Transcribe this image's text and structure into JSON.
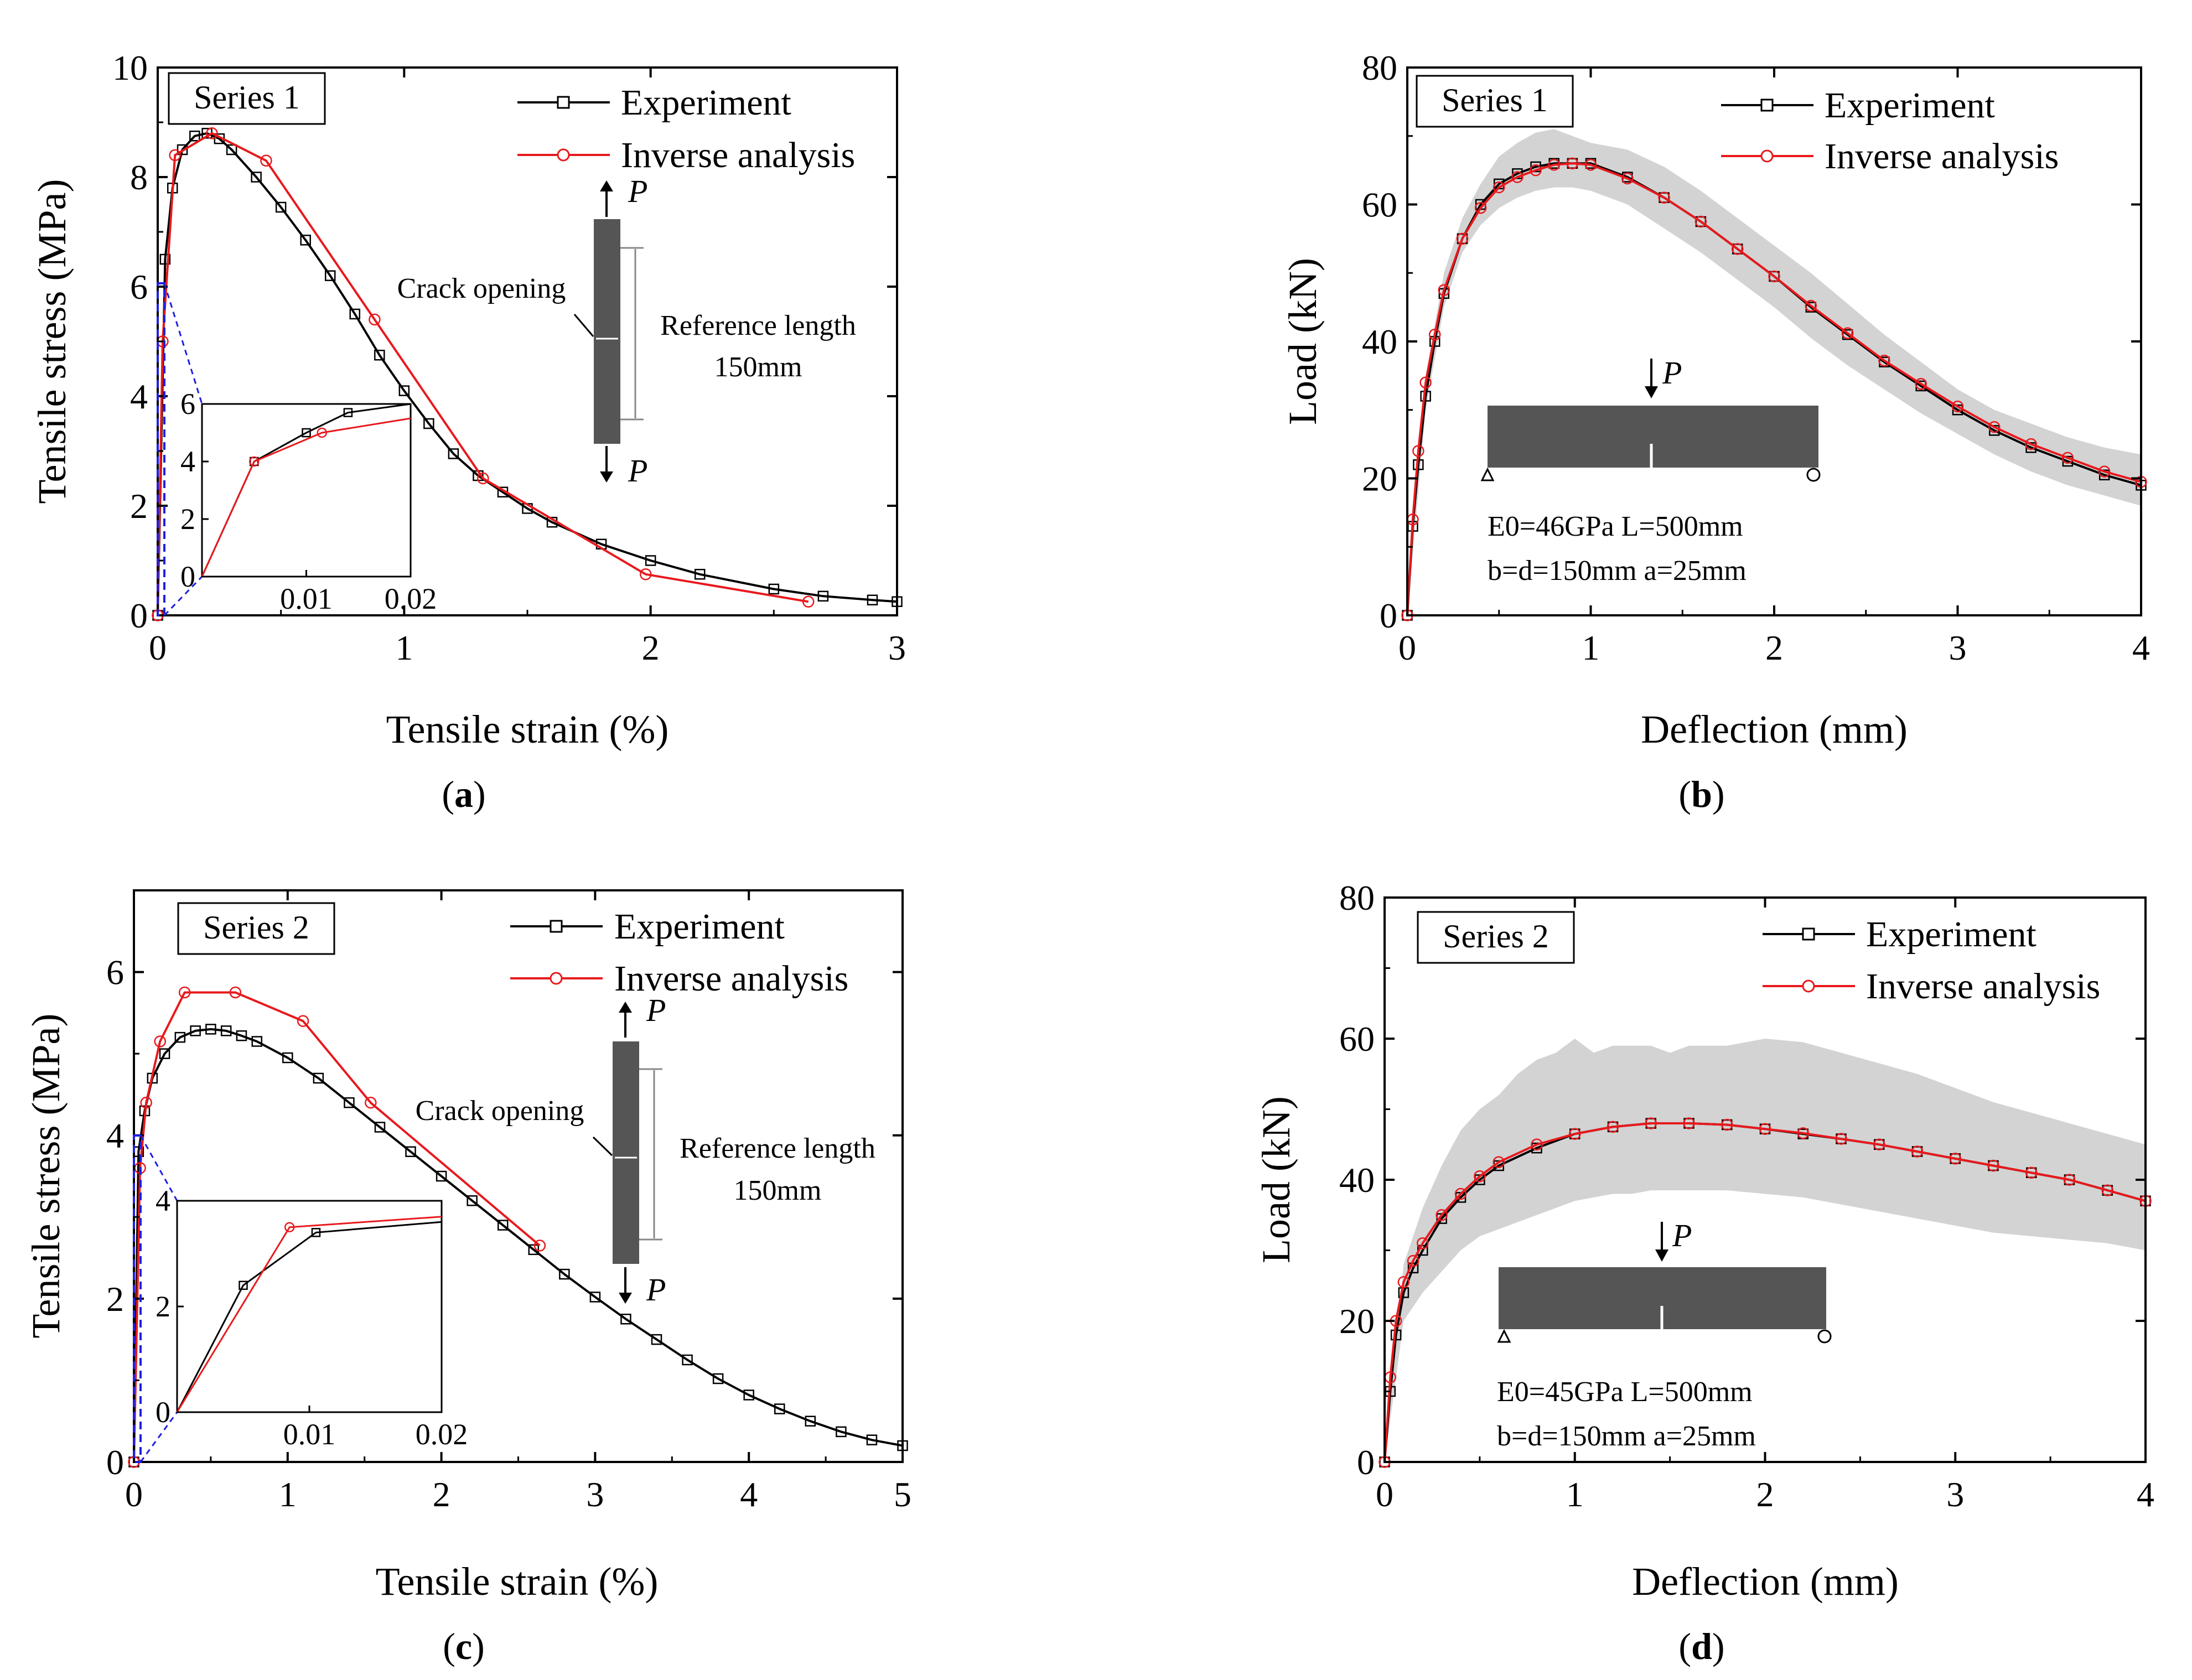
{
  "figure_captions": [
    "(a)",
    "(b)",
    "(c)",
    "(d)"
  ],
  "caption_letters": [
    "a",
    "b",
    "c",
    "d"
  ],
  "colors": {
    "experiment": "#000000",
    "inverse": "#e8191d",
    "band": "#d3d3d3",
    "zoom": "#1f1fe0",
    "specimen": "#555555"
  },
  "legend": {
    "experiment": "Experiment",
    "inverse": "Inverse analysis"
  },
  "annotations": {
    "crack_opening": "Crack opening",
    "reference_length": "Reference length",
    "reference_length_value": "150mm",
    "load_symbol": "P",
    "beam_a": {
      "line1": "E0=46GPa   L=500mm",
      "line2": "b=d=150mm  a=25mm"
    },
    "beam_b": {
      "line1": "E0=45GPa   L=500mm",
      "line2": "b=d=150mm  a=25mm"
    }
  },
  "chart_data": [
    {
      "panel": "a",
      "type": "line",
      "series_label": "Series 1",
      "xlabel": "Tensile strain (%)",
      "ylabel": "Tensile stress (MPa)",
      "xlim": [
        0,
        3
      ],
      "ylim": [
        0,
        10
      ],
      "xticks": [
        0,
        1,
        2,
        3
      ],
      "yticks": [
        0,
        2,
        4,
        6,
        8,
        10
      ],
      "series": [
        {
          "name": "Experiment",
          "x": [
            0,
            0.03,
            0.06,
            0.1,
            0.15,
            0.2,
            0.25,
            0.3,
            0.4,
            0.5,
            0.6,
            0.7,
            0.8,
            0.9,
            1.0,
            1.1,
            1.2,
            1.3,
            1.4,
            1.5,
            1.6,
            1.8,
            2.0,
            2.2,
            2.5,
            2.7,
            2.9,
            3.0
          ],
          "y": [
            0,
            6.5,
            7.8,
            8.5,
            8.75,
            8.8,
            8.7,
            8.5,
            8.0,
            7.45,
            6.85,
            6.2,
            5.5,
            4.75,
            4.1,
            3.5,
            2.95,
            2.55,
            2.25,
            1.95,
            1.7,
            1.3,
            1.0,
            0.75,
            0.48,
            0.35,
            0.28,
            0.25
          ]
        },
        {
          "name": "Inverse analysis",
          "x": [
            0,
            0.02,
            0.07,
            0.22,
            0.44,
            0.88,
            1.32,
            1.98,
            2.64
          ],
          "y": [
            0,
            5.0,
            8.4,
            8.8,
            8.3,
            5.4,
            2.5,
            0.75,
            0.25
          ]
        }
      ],
      "inset": {
        "xlim": [
          0,
          0.02
        ],
        "ylim": [
          0,
          6
        ],
        "xtick_labels": [
          "0.01",
          "0.02"
        ],
        "ytick_labels": [
          "0",
          "2",
          "4",
          "6"
        ],
        "series": [
          {
            "name": "Experiment",
            "x": [
              0,
              0.005,
              0.01,
              0.014,
              0.02
            ],
            "y": [
              0,
              4.0,
              5.0,
              5.7,
              6.0
            ]
          },
          {
            "name": "Inverse analysis",
            "x": [
              0,
              0.005,
              0.0115,
              0.02
            ],
            "y": [
              0,
              4.0,
              5.0,
              5.5
            ]
          }
        ]
      }
    },
    {
      "panel": "b",
      "type": "line",
      "series_label": "Series 1",
      "xlabel": "Deflection (mm)",
      "ylabel": "Load (kN)",
      "xlim": [
        0,
        4
      ],
      "ylim": [
        0,
        80
      ],
      "xticks": [
        0,
        1,
        2,
        3,
        4
      ],
      "yticks": [
        0,
        20,
        40,
        60,
        80
      ],
      "series": [
        {
          "name": "Experiment",
          "x": [
            0,
            0.03,
            0.06,
            0.1,
            0.15,
            0.2,
            0.3,
            0.4,
            0.5,
            0.6,
            0.7,
            0.8,
            0.9,
            1.0,
            1.2,
            1.4,
            1.6,
            1.8,
            2.0,
            2.2,
            2.4,
            2.6,
            2.8,
            3.0,
            3.2,
            3.4,
            3.6,
            3.8,
            4.0
          ],
          "y": [
            0,
            13,
            22,
            32,
            40,
            47,
            55,
            60,
            63,
            64.5,
            65.5,
            66,
            66,
            66,
            64,
            61,
            57.5,
            53.5,
            49.5,
            45,
            41,
            37,
            33.5,
            30,
            27,
            24.5,
            22.5,
            20.5,
            19
          ]
        },
        {
          "name": "Inverse analysis",
          "x": [
            0,
            0.03,
            0.06,
            0.1,
            0.15,
            0.2,
            0.3,
            0.4,
            0.5,
            0.6,
            0.7,
            0.8,
            0.9,
            1.0,
            1.2,
            1.4,
            1.6,
            1.8,
            2.0,
            2.2,
            2.4,
            2.6,
            2.8,
            3.0,
            3.2,
            3.4,
            3.6,
            3.8,
            4.0
          ],
          "y": [
            0,
            14,
            24,
            34,
            41,
            47.5,
            55,
            59.5,
            62.5,
            64,
            65,
            65.8,
            66,
            65.8,
            63.8,
            61,
            57.5,
            53.5,
            49.5,
            45.2,
            41.2,
            37.2,
            33.8,
            30.5,
            27.5,
            25,
            23,
            21,
            19.5
          ]
        }
      ],
      "band": {
        "x": [
          0,
          0.1,
          0.2,
          0.3,
          0.4,
          0.5,
          0.6,
          0.7,
          0.8,
          0.9,
          1.0,
          1.2,
          1.4,
          1.6,
          1.8,
          2.0,
          2.2,
          2.4,
          2.6,
          2.8,
          3.0,
          3.2,
          3.4,
          3.6,
          3.8,
          4.0
        ],
        "upper": [
          0,
          35,
          50,
          58,
          63,
          67,
          69,
          70.5,
          71,
          70,
          69,
          68,
          65.5,
          62,
          58,
          54,
          50,
          45.5,
          41,
          37,
          33,
          30,
          28,
          26,
          24.5,
          23.5
        ],
        "lower": [
          0,
          30,
          45,
          53,
          57,
          59.5,
          61,
          62,
          62.5,
          62.5,
          62,
          60,
          56.5,
          53,
          49,
          45,
          40.5,
          36.5,
          33,
          29.5,
          26.5,
          23.5,
          21,
          19,
          17.5,
          16
        ]
      }
    },
    {
      "panel": "c",
      "type": "line",
      "series_label": "Series 2",
      "xlabel": "Tensile strain (%)",
      "ylabel": "Tensile stress (MPa)",
      "xlim": [
        0,
        5
      ],
      "ylim": [
        0,
        7
      ],
      "xticks": [
        0,
        1,
        2,
        3,
        4,
        5
      ],
      "yticks": [
        0,
        2,
        4,
        6
      ],
      "series": [
        {
          "name": "Experiment",
          "x": [
            0,
            0.03,
            0.07,
            0.12,
            0.2,
            0.3,
            0.4,
            0.5,
            0.6,
            0.7,
            0.8,
            1.0,
            1.2,
            1.4,
            1.6,
            1.8,
            2.0,
            2.2,
            2.4,
            2.6,
            2.8,
            3.0,
            3.2,
            3.4,
            3.6,
            3.8,
            4.0,
            4.2,
            4.4,
            4.6,
            4.8,
            5.0
          ],
          "y": [
            0,
            3.8,
            4.3,
            4.7,
            5.0,
            5.2,
            5.28,
            5.3,
            5.28,
            5.22,
            5.15,
            4.95,
            4.7,
            4.4,
            4.1,
            3.8,
            3.5,
            3.2,
            2.9,
            2.6,
            2.3,
            2.02,
            1.75,
            1.5,
            1.25,
            1.02,
            0.82,
            0.65,
            0.5,
            0.37,
            0.27,
            0.2
          ]
        },
        {
          "name": "Inverse analysis",
          "x": [
            0,
            0.04,
            0.08,
            0.17,
            0.33,
            0.66,
            1.1,
            1.54,
            2.64
          ],
          "y": [
            0,
            3.6,
            4.4,
            5.15,
            5.75,
            5.75,
            5.4,
            4.4,
            2.65
          ]
        }
      ],
      "inset": {
        "xlim": [
          0,
          0.02
        ],
        "ylim": [
          0,
          4
        ],
        "xtick_labels": [
          "0.01",
          "0.02"
        ],
        "ytick_labels": [
          "0",
          "2",
          "4"
        ],
        "series": [
          {
            "name": "Experiment",
            "x": [
              0,
              0.005,
              0.0105,
              0.02
            ],
            "y": [
              0,
              2.4,
              3.4,
              3.6
            ]
          },
          {
            "name": "Inverse analysis",
            "x": [
              0,
              0.0085,
              0.02
            ],
            "y": [
              0,
              3.5,
              3.7
            ]
          }
        ]
      }
    },
    {
      "panel": "d",
      "type": "line",
      "series_label": "Series 2",
      "xlabel": "Deflection (mm)",
      "ylabel": "Load (kN)",
      "xlim": [
        0,
        4
      ],
      "ylim": [
        0,
        80
      ],
      "xticks": [
        0,
        1,
        2,
        3,
        4
      ],
      "yticks": [
        0,
        20,
        40,
        60,
        80
      ],
      "series": [
        {
          "name": "Experiment",
          "x": [
            0,
            0.03,
            0.06,
            0.1,
            0.15,
            0.2,
            0.3,
            0.4,
            0.5,
            0.6,
            0.8,
            1.0,
            1.2,
            1.4,
            1.6,
            1.8,
            2.0,
            2.2,
            2.4,
            2.6,
            2.8,
            3.0,
            3.2,
            3.4,
            3.6,
            3.8,
            4.0
          ],
          "y": [
            0,
            10,
            18,
            24,
            27.5,
            30,
            34.5,
            37.5,
            40,
            42,
            44.5,
            46.5,
            47.5,
            48,
            48,
            47.8,
            47.2,
            46.5,
            45.8,
            45,
            44,
            43,
            42,
            41,
            40,
            38.5,
            37
          ]
        },
        {
          "name": "Inverse analysis",
          "x": [
            0,
            0.03,
            0.06,
            0.1,
            0.15,
            0.2,
            0.3,
            0.4,
            0.5,
            0.6,
            0.8,
            1.0,
            1.2,
            1.4,
            1.6,
            1.8,
            2.0,
            2.2,
            2.4,
            2.6,
            2.8,
            3.0,
            3.2,
            3.4,
            3.6,
            3.8,
            4.0
          ],
          "y": [
            0,
            12,
            20,
            25.5,
            28.5,
            31,
            35,
            38,
            40.5,
            42.5,
            45,
            46.5,
            47.5,
            48,
            48,
            47.8,
            47.2,
            46.6,
            45.8,
            45,
            44,
            43,
            42,
            41,
            40,
            38.5,
            37
          ]
        }
      ],
      "band": {
        "x": [
          0,
          0.1,
          0.2,
          0.3,
          0.4,
          0.5,
          0.6,
          0.7,
          0.8,
          0.9,
          1.0,
          1.1,
          1.2,
          1.3,
          1.4,
          1.5,
          1.6,
          1.8,
          2.0,
          2.2,
          2.4,
          2.6,
          2.8,
          3.0,
          3.2,
          3.4,
          3.6,
          3.8,
          4.0
        ],
        "upper": [
          0,
          28,
          36,
          42,
          47,
          50,
          52,
          55,
          57,
          58,
          60,
          58,
          59,
          59,
          59,
          58,
          59,
          59,
          60,
          59.5,
          58,
          56.5,
          55,
          53,
          51,
          49.5,
          48,
          46.5,
          45
        ],
        "lower": [
          0,
          20,
          24,
          27,
          30,
          32,
          33,
          34,
          35,
          36,
          37,
          37.5,
          38,
          38,
          38.5,
          38.5,
          38.5,
          38.5,
          38,
          37.5,
          36.5,
          35.5,
          34.5,
          33.5,
          32.5,
          32,
          31.5,
          31,
          30
        ]
      }
    }
  ]
}
